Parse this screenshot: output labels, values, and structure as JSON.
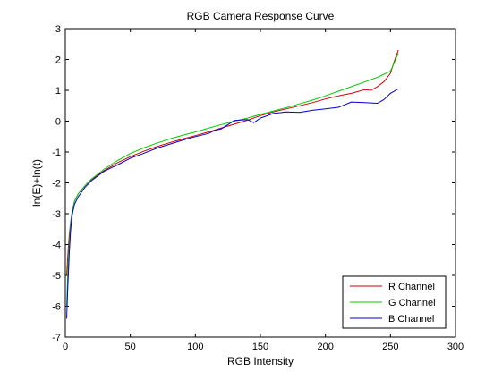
{
  "chart_data": {
    "type": "line",
    "title": "RGB Camera Response Curve",
    "xlabel": "RGB Intensity",
    "ylabel": "ln(E)+ln(t)",
    "xlim": [
      0,
      300
    ],
    "ylim": [
      -7,
      3
    ],
    "xticks": [
      0,
      50,
      100,
      150,
      200,
      250,
      300
    ],
    "yticks": [
      -7,
      -6,
      -5,
      -4,
      -3,
      -2,
      -1,
      0,
      1,
      2,
      3
    ],
    "grid": false,
    "legend_position": "bottom-right",
    "series": [
      {
        "name": "R Channel",
        "color": "#cc0000",
        "x": [
          1,
          2,
          3,
          4,
          5,
          7,
          10,
          15,
          20,
          30,
          40,
          50,
          60,
          70,
          80,
          90,
          100,
          110,
          120,
          130,
          140,
          150,
          160,
          170,
          180,
          190,
          200,
          210,
          220,
          230,
          235,
          240,
          245,
          250,
          253,
          256
        ],
        "y": [
          -5.0,
          -4.3,
          -3.7,
          -3.3,
          -3.0,
          -2.6,
          -2.35,
          -2.1,
          -1.9,
          -1.6,
          -1.35,
          -1.15,
          -0.98,
          -0.83,
          -0.7,
          -0.58,
          -0.47,
          -0.35,
          -0.22,
          -0.1,
          0.03,
          0.18,
          0.3,
          0.4,
          0.5,
          0.6,
          0.72,
          0.82,
          0.9,
          1.02,
          1.0,
          1.12,
          1.28,
          1.55,
          1.95,
          2.3
        ]
      },
      {
        "name": "G Channel",
        "color": "#00cc00",
        "x": [
          1,
          2,
          3,
          4,
          5,
          7,
          10,
          15,
          20,
          30,
          40,
          50,
          60,
          70,
          80,
          90,
          100,
          110,
          120,
          130,
          140,
          150,
          160,
          170,
          180,
          190,
          200,
          210,
          220,
          230,
          240,
          250,
          253,
          256
        ],
        "y": [
          -6.0,
          -4.8,
          -4.0,
          -3.4,
          -3.0,
          -2.6,
          -2.35,
          -2.1,
          -1.88,
          -1.55,
          -1.28,
          -1.05,
          -0.87,
          -0.72,
          -0.58,
          -0.46,
          -0.35,
          -0.23,
          -0.11,
          0.0,
          0.1,
          0.22,
          0.33,
          0.44,
          0.56,
          0.68,
          0.82,
          0.97,
          1.12,
          1.27,
          1.42,
          1.62,
          1.9,
          2.2
        ]
      },
      {
        "name": "B Channel",
        "color": "#0000cc",
        "x": [
          1,
          2,
          3,
          4,
          5,
          7,
          10,
          15,
          20,
          30,
          40,
          50,
          60,
          70,
          80,
          90,
          100,
          110,
          115,
          120,
          130,
          140,
          145,
          150,
          160,
          170,
          180,
          190,
          200,
          210,
          220,
          230,
          240,
          245,
          250,
          256
        ],
        "y": [
          -6.4,
          -5.3,
          -4.3,
          -3.6,
          -3.1,
          -2.7,
          -2.45,
          -2.15,
          -1.93,
          -1.62,
          -1.42,
          -1.2,
          -1.05,
          -0.88,
          -0.75,
          -0.62,
          -0.5,
          -0.4,
          -0.3,
          -0.25,
          0.02,
          0.05,
          -0.05,
          0.1,
          0.25,
          0.3,
          0.28,
          0.35,
          0.4,
          0.45,
          0.62,
          0.6,
          0.58,
          0.7,
          0.9,
          1.05
        ]
      }
    ]
  }
}
